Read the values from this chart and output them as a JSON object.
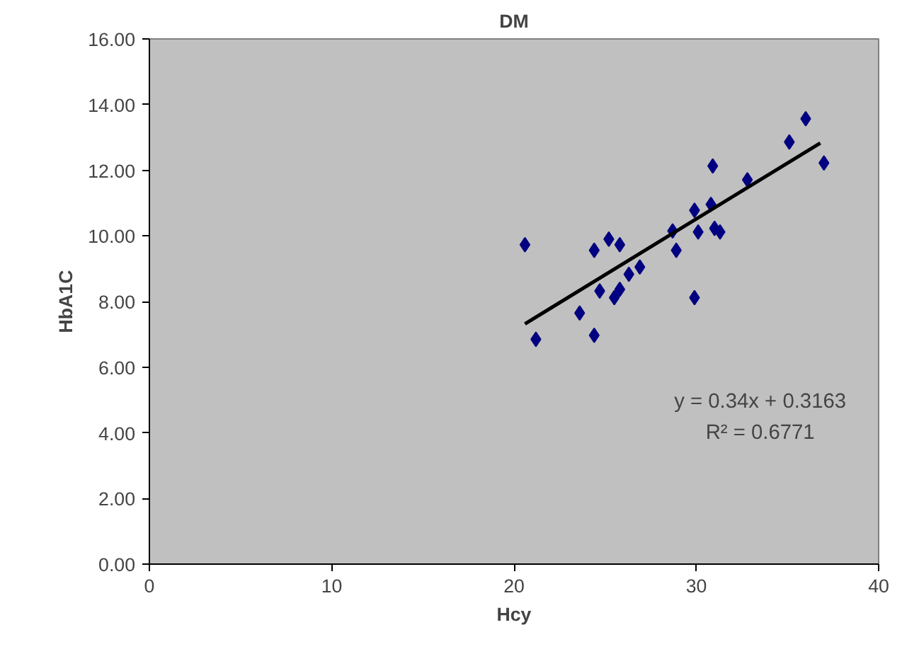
{
  "chart_data": {
    "type": "scatter",
    "title": "DM",
    "xlabel": "Hcy",
    "ylabel": "HbA1C",
    "grid": false,
    "xlim": [
      0,
      40
    ],
    "xticks": [
      0,
      10,
      20,
      30,
      40
    ],
    "ylim": [
      0,
      16
    ],
    "yticks": [
      {
        "value": 0,
        "label": "0.00"
      },
      {
        "value": 2,
        "label": "2.00"
      },
      {
        "value": 4,
        "label": "4.00"
      },
      {
        "value": 6,
        "label": "6.00"
      },
      {
        "value": 8,
        "label": "8.00"
      },
      {
        "value": 10,
        "label": "10.00"
      },
      {
        "value": 12,
        "label": "12.00"
      },
      {
        "value": 14,
        "label": "14.00"
      },
      {
        "value": 16,
        "label": "16.00"
      }
    ],
    "series": [
      {
        "color": "#000080",
        "marker": "diamond",
        "x": [
          20.6,
          21.2,
          23.6,
          24.4,
          24.4,
          25.2,
          25.8,
          24.7,
          25.5,
          25.8,
          26.3,
          26.9,
          28.7,
          28.9,
          29.9,
          29.9,
          30.1,
          30.8,
          30.9,
          31.0,
          31.3,
          32.8,
          35.1,
          36.0,
          37.0
        ],
        "values": [
          9.73,
          6.85,
          7.65,
          6.97,
          9.56,
          9.9,
          9.73,
          8.32,
          8.12,
          8.37,
          8.83,
          9.05,
          10.15,
          9.56,
          8.12,
          10.78,
          10.12,
          10.96,
          12.13,
          10.23,
          10.12,
          11.71,
          12.86,
          13.57,
          12.22
        ]
      },
      {
        "type": "line",
        "marker": "none",
        "color": "#000000",
        "x": [
          20.6,
          36.8
        ],
        "values": [
          7.32,
          12.83
        ]
      }
    ],
    "annotations": [
      "y = 0.34x + 0.3163",
      "R² = 0.6771"
    ]
  }
}
